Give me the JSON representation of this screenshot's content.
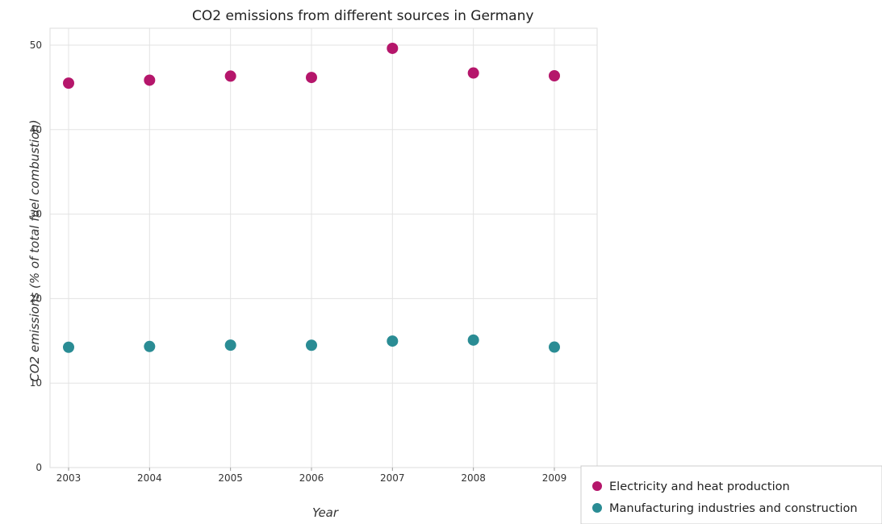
{
  "chart_data": {
    "type": "scatter",
    "title": "CO2 emissions from different sources in Germany",
    "xlabel": "Year",
    "ylabel": "CO2 emissions (% of total fuel combustion)",
    "categories": [
      "2003",
      "2004",
      "2005",
      "2006",
      "2007",
      "2008",
      "2009"
    ],
    "ylim": [
      0,
      52
    ],
    "yticks": [
      "0",
      "10",
      "20",
      "30",
      "40",
      "50"
    ],
    "ytick_values": [
      0,
      10,
      20,
      30,
      40,
      50
    ],
    "grid": true,
    "legend_position": "bottom-right",
    "series": [
      {
        "name": "Electricity and heat production",
        "color": "#b5166b",
        "values": [
          45.5,
          45.85,
          46.33,
          46.17,
          49.62,
          46.7,
          46.37
        ]
      },
      {
        "name": "Manufacturing industries and construction",
        "color": "#2a8c94",
        "values": [
          14.24,
          14.33,
          14.49,
          14.48,
          14.97,
          15.09,
          14.26
        ]
      }
    ]
  }
}
